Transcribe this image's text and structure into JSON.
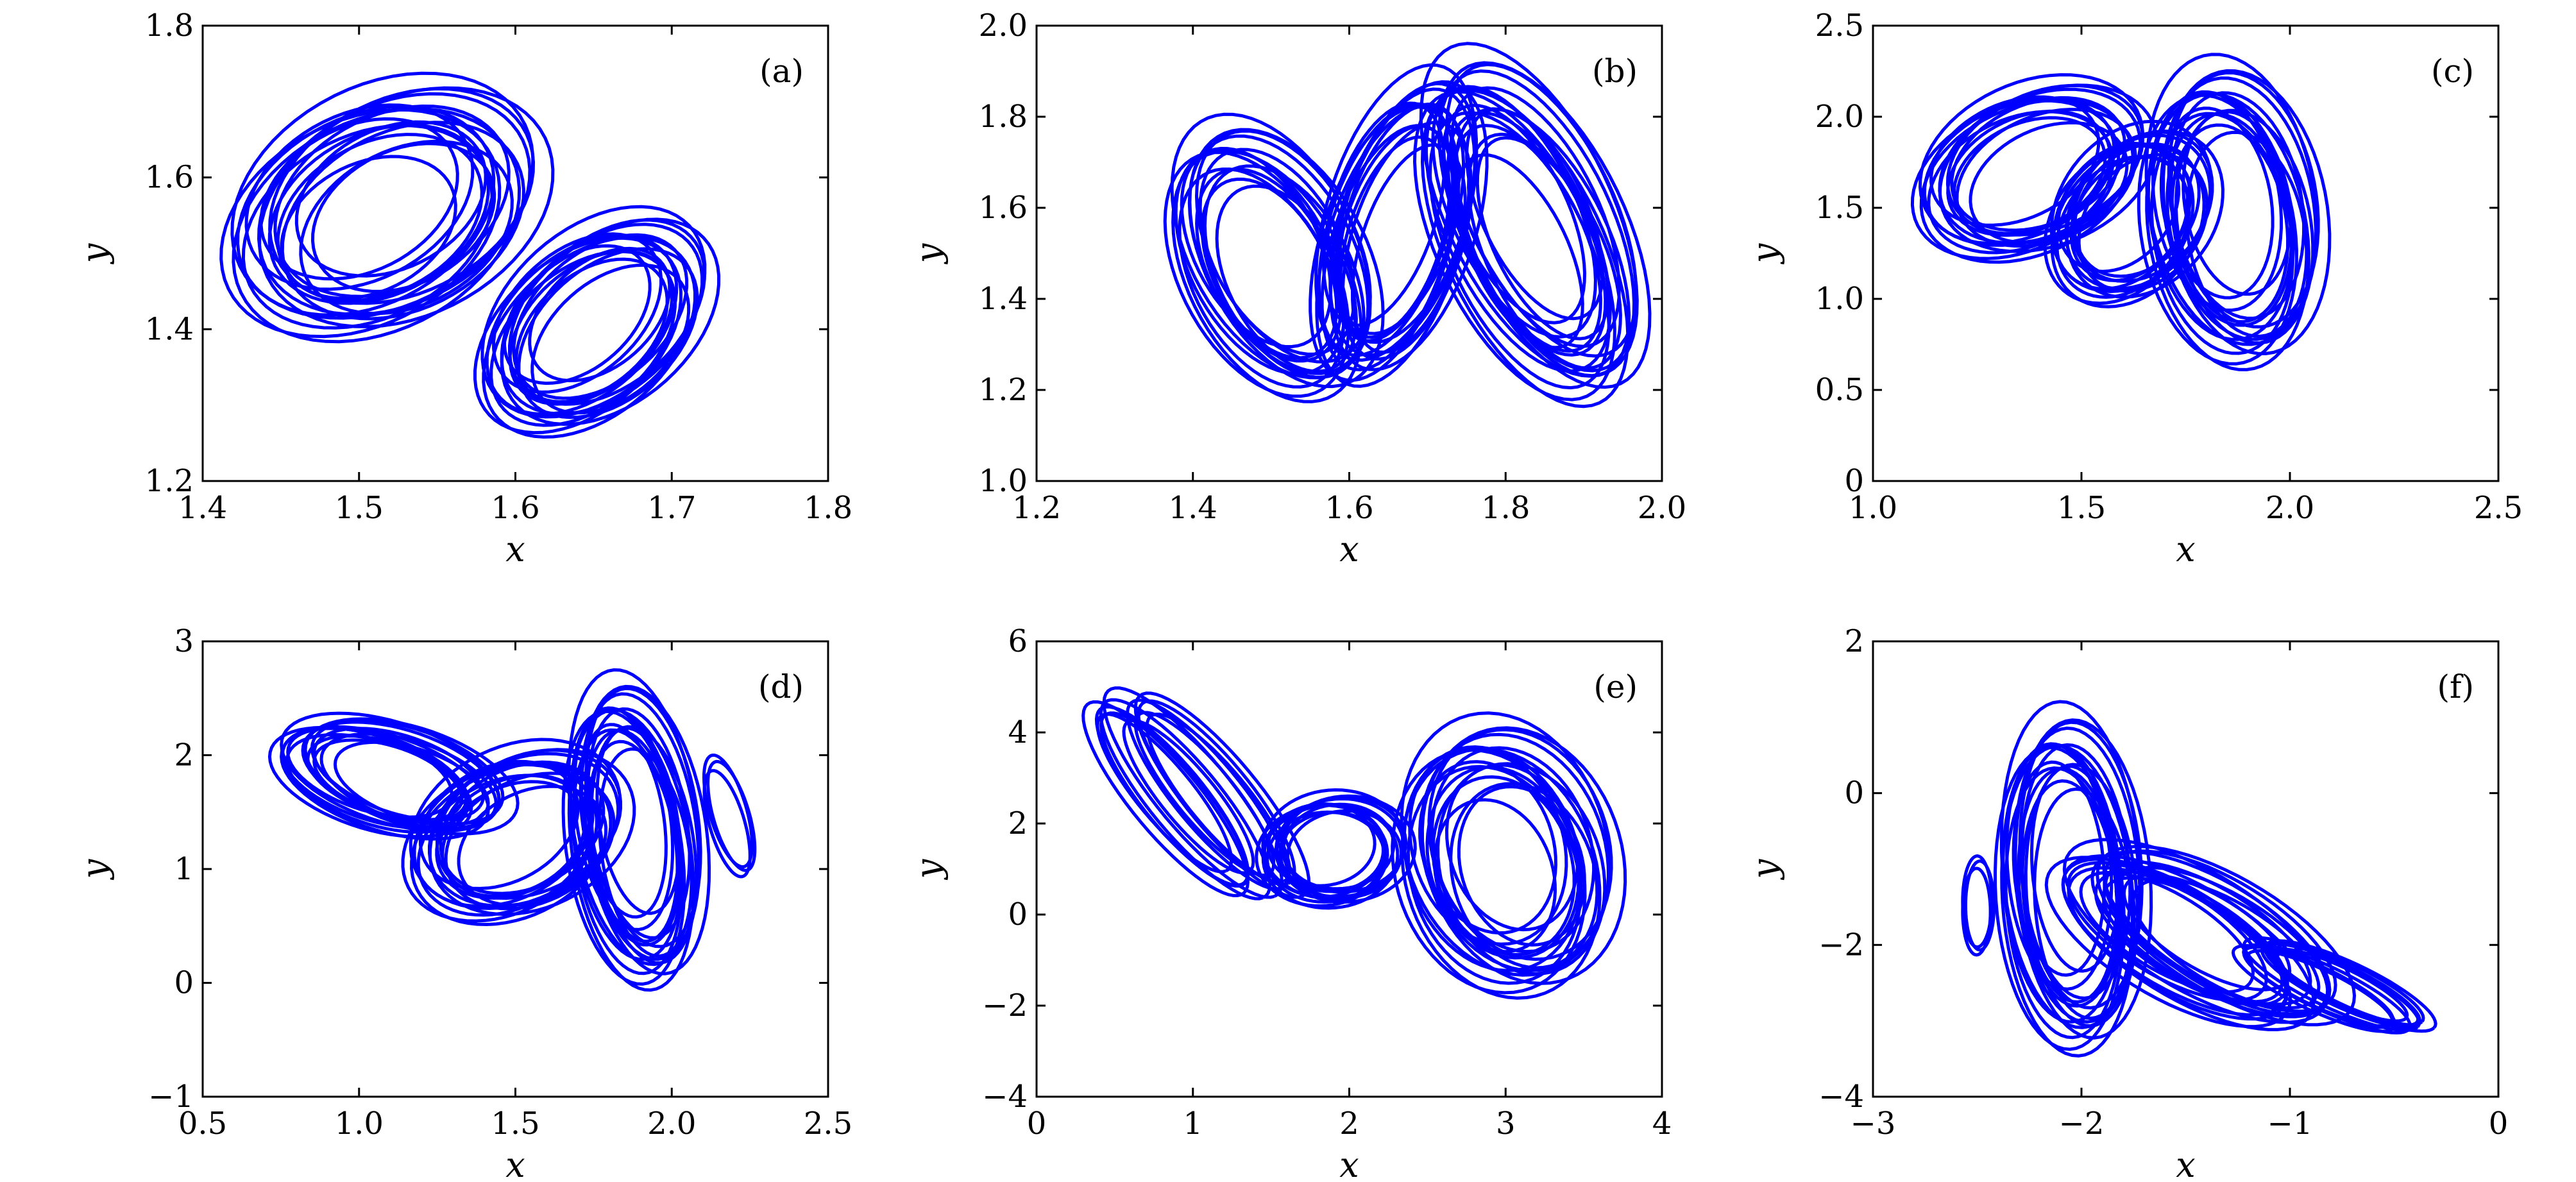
{
  "figure": {
    "line_color": "#0000ff",
    "axis_color": "#000000"
  },
  "chart_data": [
    {
      "type": "line",
      "panel_label": "(a)",
      "xlabel": "x",
      "ylabel": "y",
      "xlim": [
        1.4,
        1.8
      ],
      "ylim": [
        1.2,
        1.8
      ],
      "xticks": [
        1.4,
        1.5,
        1.6,
        1.7,
        1.8
      ],
      "yticks": [
        1.2,
        1.4,
        1.6,
        1.8
      ],
      "xtick_labels": [
        "1.4",
        "1.5",
        "1.6",
        "1.7",
        "1.8"
      ],
      "ytick_labels": [
        "1.2",
        "1.4",
        "1.6",
        "1.8"
      ],
      "series": [
        {
          "path_type": "attractor",
          "loops": [
            {
              "cx": 1.515,
              "cy": 1.555,
              "rx": 0.085,
              "ry": 0.175,
              "tilt": -0.6,
              "count": 18
            },
            {
              "cx": 1.65,
              "cy": 1.405,
              "rx": 0.06,
              "ry": 0.15,
              "tilt": -0.5,
              "count": 16
            }
          ]
        }
      ]
    },
    {
      "type": "line",
      "panel_label": "(b)",
      "xlabel": "x",
      "ylabel": "y",
      "xlim": [
        1.2,
        2.0
      ],
      "ylim": [
        1.0,
        2.0
      ],
      "xticks": [
        1.2,
        1.4,
        1.6,
        1.8,
        2.0
      ],
      "yticks": [
        1.0,
        1.2,
        1.4,
        1.6,
        1.8,
        2.0
      ],
      "xtick_labels": [
        "1.2",
        "1.4",
        "1.6",
        "1.8",
        "2.0"
      ],
      "ytick_labels": [
        "1.0",
        "1.2",
        "1.4",
        "1.6",
        "1.8",
        "2.0"
      ],
      "series": [
        {
          "path_type": "attractor",
          "loops": [
            {
              "cx": 1.5,
              "cy": 1.48,
              "rx": 0.11,
              "ry": 0.3,
              "tilt": 0.3,
              "count": 14
            },
            {
              "cx": 1.66,
              "cy": 1.55,
              "rx": 0.09,
              "ry": 0.33,
              "tilt": -0.2,
              "count": 14
            },
            {
              "cx": 1.83,
              "cy": 1.55,
              "rx": 0.11,
              "ry": 0.38,
              "tilt": 0.3,
              "count": 18
            }
          ]
        }
      ]
    },
    {
      "type": "line",
      "panel_label": "(c)",
      "xlabel": "x",
      "ylabel": "y",
      "xlim": [
        1.0,
        2.5
      ],
      "ylim": [
        0.0,
        2.5
      ],
      "xticks": [
        1.0,
        1.5,
        2.0,
        2.5
      ],
      "yticks": [
        0.0,
        0.5,
        1.0,
        1.5,
        2.0,
        2.5
      ],
      "xtick_labels": [
        "1.0",
        "1.5",
        "2.0",
        "2.5"
      ],
      "ytick_labels": [
        "0",
        "0.5",
        "1.0",
        "1.5",
        "2.0",
        "2.5"
      ],
      "series": [
        {
          "path_type": "attractor",
          "loops": [
            {
              "cx": 1.38,
              "cy": 1.7,
              "rx": 0.23,
              "ry": 0.52,
              "tilt": -0.7,
              "count": 14
            },
            {
              "cx": 1.62,
              "cy": 1.45,
              "rx": 0.18,
              "ry": 0.48,
              "tilt": -0.3,
              "count": 12
            },
            {
              "cx": 1.86,
              "cy": 1.45,
              "rx": 0.2,
              "ry": 0.8,
              "tilt": 0.1,
              "count": 16
            }
          ]
        }
      ]
    },
    {
      "type": "line",
      "panel_label": "(d)",
      "xlabel": "x",
      "ylabel": "y",
      "xlim": [
        0.5,
        2.5
      ],
      "ylim": [
        -1,
        3
      ],
      "xticks": [
        0.5,
        1.0,
        1.5,
        2.0,
        2.5
      ],
      "yticks": [
        -1,
        0,
        1,
        2,
        3
      ],
      "xtick_labels": [
        "0.5",
        "1.0",
        "1.5",
        "2.0",
        "2.5"
      ],
      "ytick_labels": [
        "−1",
        "0",
        "1",
        "2",
        "3"
      ],
      "series": [
        {
          "path_type": "attractor",
          "loops": [
            {
              "cx": 1.1,
              "cy": 1.8,
              "rx": 0.38,
              "ry": 0.42,
              "tilt": -0.5,
              "count": 14
            },
            {
              "cx": 1.5,
              "cy": 1.3,
              "rx": 0.3,
              "ry": 0.8,
              "tilt": -0.6,
              "count": 14
            },
            {
              "cx": 1.88,
              "cy": 1.3,
              "rx": 0.2,
              "ry": 1.3,
              "tilt": 0.1,
              "count": 16
            },
            {
              "cx": 2.18,
              "cy": 1.45,
              "rx": 0.06,
              "ry": 0.5,
              "tilt": 0.2,
              "count": 3
            }
          ]
        }
      ]
    },
    {
      "type": "line",
      "panel_label": "(e)",
      "xlabel": "x",
      "ylabel": "y",
      "xlim": [
        0,
        4
      ],
      "ylim": [
        -4,
        6
      ],
      "xticks": [
        0,
        1,
        2,
        3,
        4
      ],
      "yticks": [
        -4,
        -2,
        0,
        2,
        4,
        6
      ],
      "xtick_labels": [
        "0",
        "1",
        "2",
        "3",
        "4"
      ],
      "ytick_labels": [
        "−4",
        "−2",
        "0",
        "2",
        "4",
        "6"
      ],
      "series": [
        {
          "path_type": "attractor",
          "loops": [
            {
              "cx": 1.0,
              "cy": 2.6,
              "rx": 1.05,
              "ry": 0.65,
              "tilt": -1.05,
              "count": 12
            },
            {
              "cx": 1.9,
              "cy": 1.4,
              "rx": 0.45,
              "ry": 1.2,
              "tilt": -0.3,
              "count": 12
            },
            {
              "cx": 3.0,
              "cy": 1.2,
              "rx": 0.65,
              "ry": 2.9,
              "tilt": 0.15,
              "count": 18
            }
          ]
        }
      ]
    },
    {
      "type": "line",
      "panel_label": "(f)",
      "xlabel": "x",
      "ylabel": "y",
      "xlim": [
        -3,
        0
      ],
      "ylim": [
        -4,
        2
      ],
      "xticks": [
        -3,
        -2,
        -1,
        0
      ],
      "yticks": [
        -4,
        -2,
        0,
        2
      ],
      "xtick_labels": [
        "−3",
        "−2",
        "−1",
        "0"
      ],
      "ytick_labels": [
        "−4",
        "−2",
        "0",
        "2"
      ],
      "series": [
        {
          "path_type": "attractor",
          "loops": [
            {
              "cx": -2.05,
              "cy": -1.2,
              "rx": 0.33,
              "ry": 2.15,
              "tilt": 0.05,
              "count": 16
            },
            {
              "cx": -1.45,
              "cy": -1.9,
              "rx": 0.8,
              "ry": 0.7,
              "tilt": -0.75,
              "count": 16
            },
            {
              "cx": -0.8,
              "cy": -2.55,
              "rx": 0.5,
              "ry": 0.28,
              "tilt": -0.6,
              "count": 10
            },
            {
              "cx": -2.5,
              "cy": -1.5,
              "rx": 0.07,
              "ry": 0.6,
              "tilt": 0.0,
              "count": 3
            }
          ]
        }
      ]
    }
  ]
}
